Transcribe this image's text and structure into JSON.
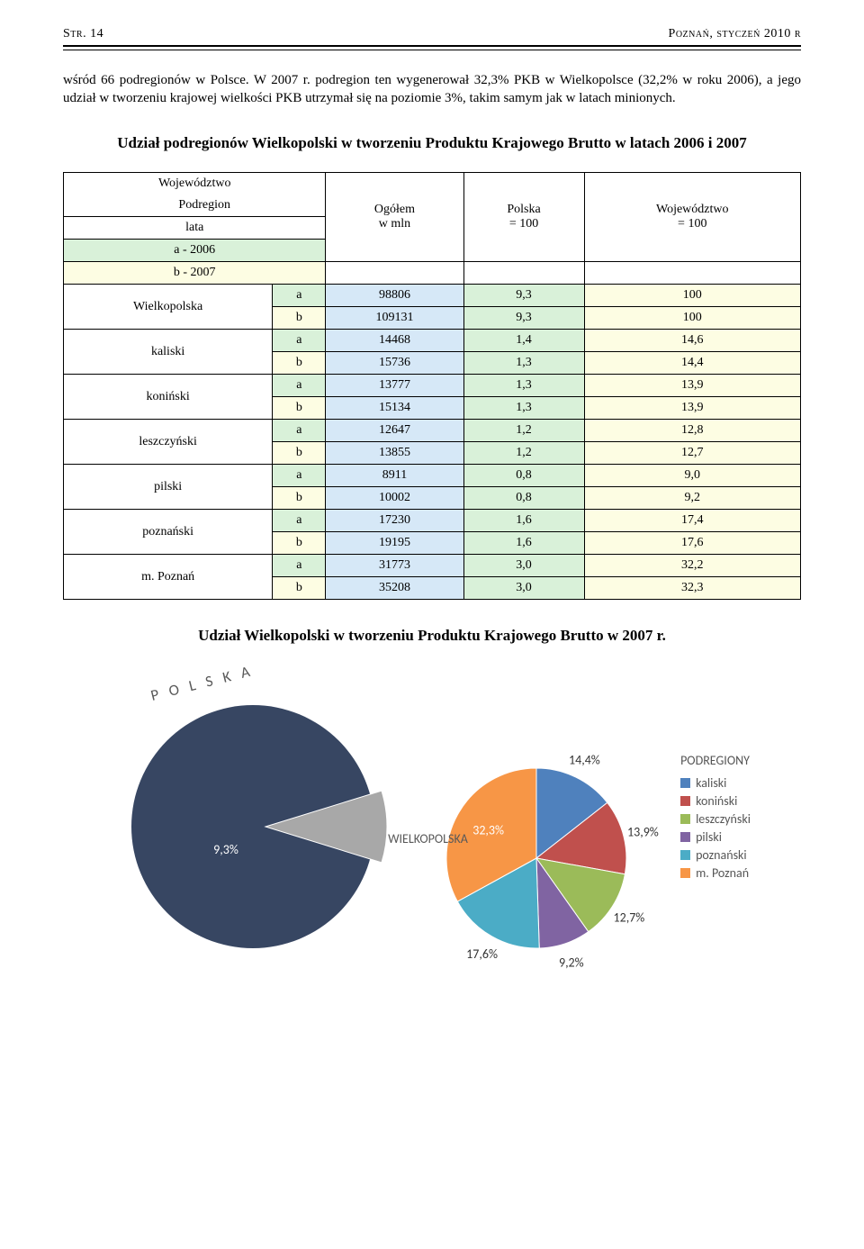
{
  "header": {
    "left": "Str. 14",
    "right": "Poznań, styczeń 2010 r"
  },
  "paragraph": "wśród 66 podregionów w Polsce. W 2007 r. podregion ten wygenerował 32,3% PKB w Wielkopolsce (32,2% w roku 2006), a jego udział w tworzeniu krajowej wielkości PKB utrzymał się na poziomie 3%, takim samym jak w latach minionych.",
  "table_title": "Udział podregionów Wielkopolski w tworzeniu Produktu Krajowego Brutto w latach 2006 i 2007",
  "table": {
    "header": {
      "woj": "Województwo",
      "pod": "Podregion",
      "lata": "lata",
      "a": "a - 2006",
      "b": "b - 2007",
      "ogolem": "Ogółem",
      "wmln": "w mln",
      "polska": "Polska",
      "polska100": "= 100",
      "woj100": "Województwo",
      "woj100b": "= 100"
    },
    "rows": [
      {
        "name": "Wielkopolska",
        "a": [
          "98806",
          "9,3",
          "100"
        ],
        "b": [
          "109131",
          "9,3",
          "100"
        ]
      },
      {
        "name": "kaliski",
        "a": [
          "14468",
          "1,4",
          "14,6"
        ],
        "b": [
          "15736",
          "1,3",
          "14,4"
        ]
      },
      {
        "name": "koniński",
        "a": [
          "13777",
          "1,3",
          "13,9"
        ],
        "b": [
          "15134",
          "1,3",
          "13,9"
        ]
      },
      {
        "name": "leszczyński",
        "a": [
          "12647",
          "1,2",
          "12,8"
        ],
        "b": [
          "13855",
          "1,2",
          "12,7"
        ]
      },
      {
        "name": "pilski",
        "a": [
          "8911",
          "0,8",
          "9,0"
        ],
        "b": [
          "10002",
          "0,8",
          "9,2"
        ]
      },
      {
        "name": "poznański",
        "a": [
          "17230",
          "1,6",
          "17,4"
        ],
        "b": [
          "19195",
          "1,6",
          "17,6"
        ]
      },
      {
        "name": "m. Poznań",
        "a": [
          "31773",
          "3,0",
          "32,2"
        ],
        "b": [
          "35208",
          "3,0",
          "32,3"
        ]
      }
    ]
  },
  "chart_title": "Udział Wielkopolski w tworzeniu Produktu Krajowego Brutto w 2007 r.",
  "chart": {
    "polska_label": "P O L S K A",
    "wielkopolska_label": "WIELKOPOLSKA",
    "big_pct": "9,3%",
    "big_colors": {
      "rest": "#374662",
      "slice": "#a8a8a8"
    },
    "legend_title": "PODREGIONY",
    "slices": [
      {
        "label": "kaliski",
        "pct": "14,4%",
        "color": "#4f81bd",
        "txtcolor": "#fff"
      },
      {
        "label": "koniński",
        "pct": "13,9%",
        "color": "#c0504d",
        "txtcolor": "#fff"
      },
      {
        "label": "leszczyński",
        "pct": "12,7%",
        "color": "#9bbb59",
        "txtcolor": "#fff"
      },
      {
        "label": "pilski",
        "pct": "9,2%",
        "color": "#8064a2",
        "txtcolor": "#fff"
      },
      {
        "label": "poznański",
        "pct": "17,6%",
        "color": "#4bacc6",
        "txtcolor": "#fff"
      },
      {
        "label": "m. Poznań",
        "pct": "32,3%",
        "color": "#f79646",
        "txtcolor": "#fff"
      }
    ]
  }
}
